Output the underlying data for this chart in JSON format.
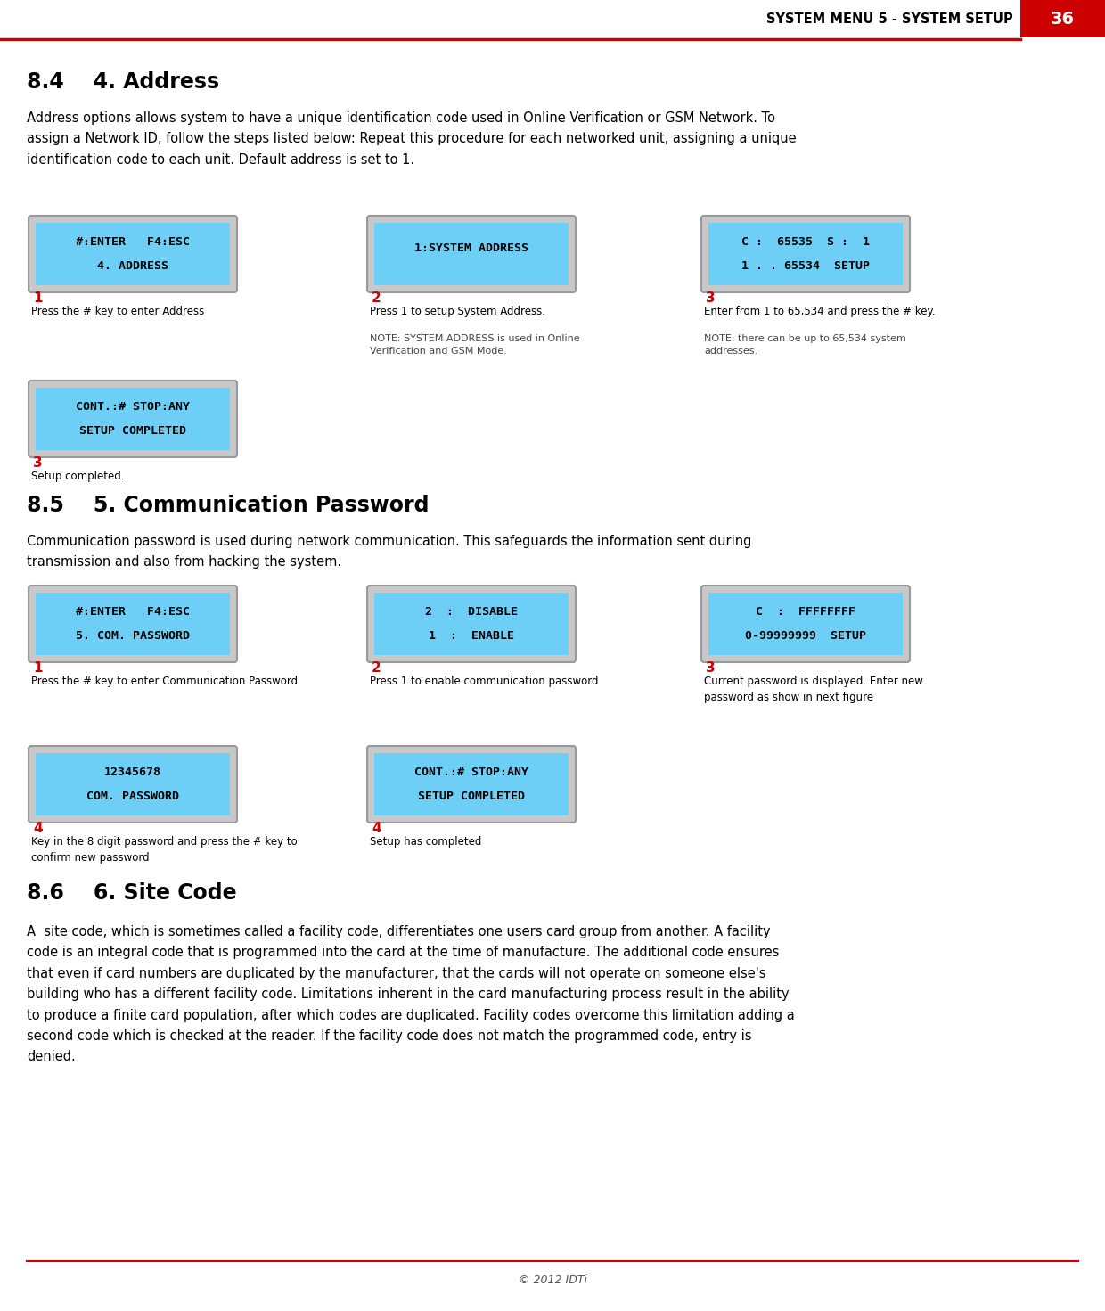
{
  "page_width": 12.4,
  "page_height": 14.71,
  "dpi": 100,
  "bg_color": "#ffffff",
  "header_text": "SYSTEM MENU 5 - SYSTEM SETUP",
  "header_page": "36",
  "header_bg": "#cc0000",
  "header_line_color": "#cc0000",
  "section_84_title": "8.4    4. Address",
  "section_84_body": "Address options allows system to have a unique identification code used in Online Verification or GSM Network. To\nassign a Network ID, follow the steps listed below: Repeat this procedure for each networked unit, assigning a unique\nidentification code to each unit. Default address is set to 1.",
  "section_85_title": "8.5    5. Communication Password",
  "section_85_body": "Communication password is used during network communication. This safeguards the information sent during\ntransmission and also from hacking the system.",
  "section_86_title": "8.6    6. Site Code",
  "section_86_body": "A  site code, which is sometimes called a facility code, differentiates one users card group from another. A facility\ncode is an integral code that is programmed into the card at the time of manufacture. The additional code ensures\nthat even if card numbers are duplicated by the manufacturer, that the cards will not operate on someone else's\nbuilding who has a different facility code. Limitations inherent in the card manufacturing process result in the ability\nto produce a finite card population, after which codes are duplicated. Facility codes overcome this limitation adding a\nsecond code which is checked at the reader. If the facility code does not match the programmed code, entry is\ndenied.",
  "footer_text": "© 2012 IDTi",
  "screen_bg": "#6ecff6",
  "screen_outer_bg": "#c8c8c8",
  "screen_border": "#999999",
  "screen_text_color": "#000000",
  "step_num_color": "#cc0000",
  "note_color": "#444444",
  "screens_84_row1": [
    {
      "lines": [
        "4. ADDRESS",
        "#:ENTER   F4:ESC"
      ],
      "step": "1",
      "caption": "Press the # key to enter Address",
      "note": ""
    },
    {
      "lines": [
        "1:SYSTEM ADDRESS",
        ""
      ],
      "step": "2",
      "caption": "Press 1 to setup System Address.",
      "note": "NOTE: SYSTEM ADDRESS is used in Online\nVerification and GSM Mode."
    },
    {
      "lines": [
        "1 . . 65534  SETUP",
        "C :  65535  S :  1"
      ],
      "step": "3",
      "caption": "Enter from 1 to 65,534 and press the # key.",
      "note": "NOTE: there can be up to 65,534 system\naddresses."
    }
  ],
  "screen_84_last": {
    "lines": [
      "SETUP COMPLETED",
      "CONT.:# STOP:ANY"
    ],
    "step": "3",
    "caption": "Setup completed."
  },
  "screens_85_row1": [
    {
      "lines": [
        "5. COM. PASSWORD",
        "#:ENTER   F4:ESC"
      ],
      "step": "1",
      "caption": "Press the # key to enter Communication Password",
      "note": ""
    },
    {
      "lines": [
        "1  :  ENABLE",
        "2  :  DISABLE"
      ],
      "step": "2",
      "caption": "Press 1 to enable communication password",
      "note": ""
    },
    {
      "lines": [
        "0-99999999  SETUP",
        "C  :  FFFFFFFF"
      ],
      "step": "3",
      "caption": "Current password is displayed. Enter new\npassword as show in next figure",
      "note": ""
    }
  ],
  "screens_85_row2": [
    {
      "lines": [
        "COM. PASSWORD",
        "12345678"
      ],
      "step": "4",
      "caption": "Key in the 8 digit password and press the # key to\nconfirm new password"
    },
    {
      "lines": [
        "SETUP COMPLETED",
        "CONT.:# STOP:ANY"
      ],
      "step": "4",
      "caption": "Setup has completed"
    }
  ]
}
